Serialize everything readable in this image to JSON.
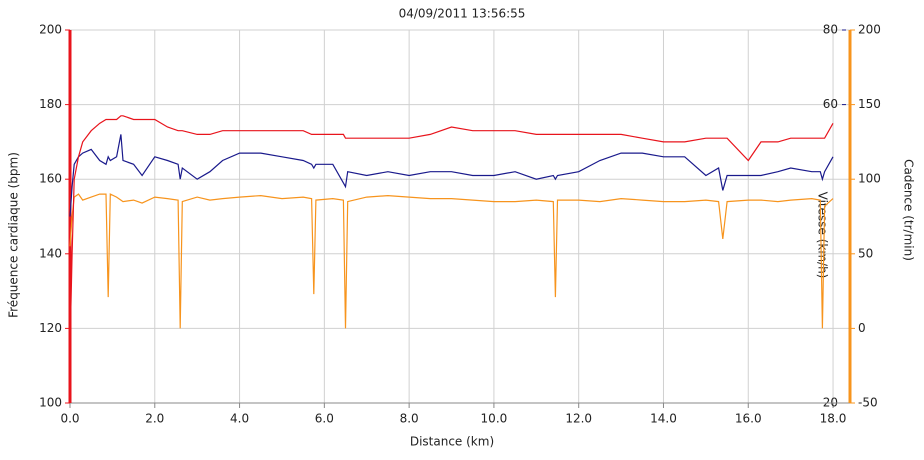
{
  "chart_data": {
    "type": "line",
    "title": "04/09/2011 13:56:55",
    "x_label": "Distance (km)",
    "y_label": "Fréquence cardiaque (bpm)",
    "y2_label": "Vitesse (km/h)",
    "y3_label": "Cadence (tr/min)",
    "grid": true,
    "xlim": [
      0,
      18.4
    ],
    "xticks": [
      {
        "value": 0,
        "label": "0.0"
      },
      {
        "value": 2,
        "label": "2.0"
      },
      {
        "value": 4,
        "label": "4.0"
      },
      {
        "value": 6,
        "label": "6.0"
      },
      {
        "value": 8,
        "label": "8.0"
      },
      {
        "value": 10,
        "label": "10.0"
      },
      {
        "value": 12,
        "label": "12.0"
      },
      {
        "value": 14,
        "label": "14.0"
      },
      {
        "value": 16,
        "label": "16.0"
      },
      {
        "value": 18,
        "label": "18.0"
      }
    ],
    "ylim": [
      100,
      200
    ],
    "yticks": [
      100,
      120,
      140,
      160,
      180,
      200
    ],
    "y2lim": [
      -20,
      80
    ],
    "y2ticks": [
      -20,
      60,
      80
    ],
    "y3lim": [
      -50,
      200
    ],
    "y3ticks": [
      -50,
      0,
      50,
      100,
      150,
      200
    ],
    "x": [
      0,
      0.05,
      0.1,
      0.2,
      0.3,
      0.5,
      0.7,
      0.85,
      0.9,
      0.95,
      1.1,
      1.2,
      1.25,
      1.5,
      1.7,
      2.0,
      2.3,
      2.55,
      2.6,
      2.65,
      3.0,
      3.3,
      3.6,
      4.0,
      4.5,
      5.0,
      5.5,
      5.7,
      5.75,
      5.8,
      6.2,
      6.45,
      6.5,
      6.55,
      7.0,
      7.5,
      8.0,
      8.5,
      9.0,
      9.5,
      10.0,
      10.5,
      11.0,
      11.4,
      11.45,
      11.5,
      12.0,
      12.5,
      13.0,
      13.5,
      14.0,
      14.5,
      15.0,
      15.3,
      15.4,
      15.5,
      16.0,
      16.3,
      16.7,
      17.0,
      17.5,
      17.7,
      17.75,
      17.8,
      18.0
    ],
    "series": [
      {
        "axis": "y",
        "color": "#e8141c",
        "values": [
          115,
          140,
          160,
          166,
          170,
          173,
          175,
          176,
          176,
          176,
          176,
          177,
          177,
          176,
          176,
          176,
          174,
          173,
          173,
          173,
          172,
          172,
          173,
          173,
          173,
          173,
          173,
          172,
          172,
          172,
          172,
          172,
          171,
          171,
          171,
          171,
          171,
          172,
          174,
          173,
          173,
          173,
          172,
          172,
          172,
          172,
          172,
          172,
          172,
          171,
          170,
          170,
          171,
          171,
          171,
          171,
          165,
          170,
          170,
          171,
          171,
          171,
          171,
          171,
          175
        ]
      },
      {
        "axis": "y2",
        "color": "#1a1a8c",
        "values": [
          30,
          38,
          44,
          46,
          47,
          48,
          45,
          44,
          46,
          45,
          46,
          52,
          45,
          44,
          41,
          46,
          45,
          44,
          40,
          43,
          40,
          42,
          45,
          47,
          47,
          46,
          45,
          44,
          43,
          44,
          44,
          39,
          38,
          42,
          41,
          42,
          41,
          42,
          42,
          41,
          41,
          42,
          40,
          41,
          40,
          41,
          42,
          45,
          47,
          47,
          46,
          46,
          41,
          43,
          37,
          41,
          41,
          41,
          42,
          43,
          42,
          42,
          40,
          42,
          46
        ]
      },
      {
        "axis": "y3",
        "color": "#f7941d",
        "values": [
          55,
          75,
          88,
          90,
          86,
          88,
          90,
          90,
          21,
          90,
          88,
          86,
          85,
          86,
          84,
          88,
          87,
          86,
          0,
          85,
          88,
          86,
          87,
          88,
          89,
          87,
          88,
          87,
          23,
          86,
          87,
          86,
          0,
          85,
          88,
          89,
          88,
          87,
          87,
          86,
          85,
          85,
          86,
          85,
          21,
          86,
          86,
          85,
          87,
          86,
          85,
          85,
          86,
          85,
          60,
          85,
          86,
          86,
          85,
          86,
          87,
          86,
          0,
          82,
          87
        ]
      }
    ]
  }
}
